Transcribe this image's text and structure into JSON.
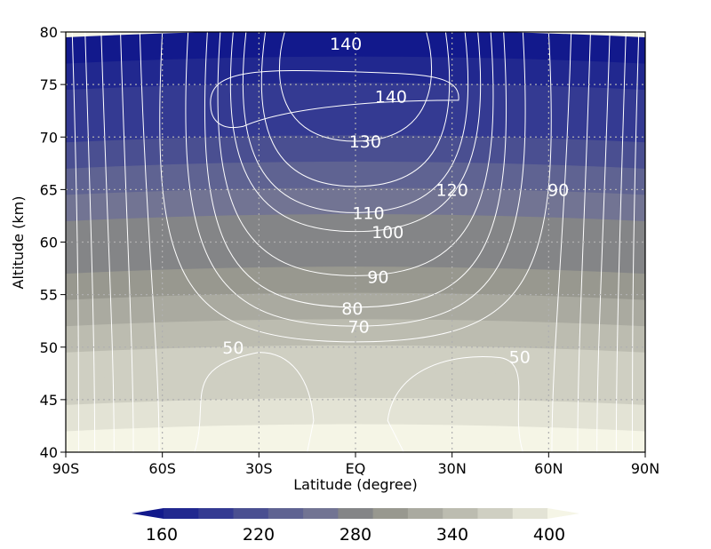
{
  "chart_data": {
    "type": "contour",
    "xlabel": "Latitude (degree)",
    "ylabel": "Altitude (km)",
    "xlim": [
      -90,
      90
    ],
    "ylim": [
      40,
      80
    ],
    "x_ticks": [
      {
        "value": -90,
        "label": "90S"
      },
      {
        "value": -60,
        "label": "60S"
      },
      {
        "value": -30,
        "label": "30S"
      },
      {
        "value": 0,
        "label": "EQ"
      },
      {
        "value": 30,
        "label": "30N"
      },
      {
        "value": 60,
        "label": "60N"
      },
      {
        "value": 90,
        "label": "90N"
      }
    ],
    "y_ticks": [
      {
        "value": 40,
        "label": "40"
      },
      {
        "value": 45,
        "label": "45"
      },
      {
        "value": 50,
        "label": "50"
      },
      {
        "value": 55,
        "label": "55"
      },
      {
        "value": 60,
        "label": "60"
      },
      {
        "value": 65,
        "label": "65"
      },
      {
        "value": 70,
        "label": "70"
      },
      {
        "value": 75,
        "label": "75"
      },
      {
        "value": 80,
        "label": "80"
      }
    ],
    "grid": true,
    "filled_field": {
      "description_units": "temperature-like scalar, shaded bands",
      "bands_by_altitude": [
        {
          "y_from": 40,
          "y_to": 42.5,
          "value": 400
        },
        {
          "y_from": 42.5,
          "y_to": 45,
          "value": 385
        },
        {
          "y_from": 45,
          "y_to": 47.5,
          "value": 370
        },
        {
          "y_from": 47.5,
          "y_to": 50,
          "value": 355
        },
        {
          "y_from": 50,
          "y_to": 52.5,
          "value": 340
        },
        {
          "y_from": 52.5,
          "y_to": 55,
          "value": 325
        },
        {
          "y_from": 55,
          "y_to": 57.5,
          "value": 310
        },
        {
          "y_from": 57.5,
          "y_to": 60,
          "value": 295
        },
        {
          "y_from": 60,
          "y_to": 62.5,
          "value": 280
        },
        {
          "y_from": 62.5,
          "y_to": 65,
          "value": 265
        },
        {
          "y_from": 65,
          "y_to": 67.5,
          "value": 250
        },
        {
          "y_from": 67.5,
          "y_to": 70,
          "value": 235
        },
        {
          "y_from": 70,
          "y_to": 72.5,
          "value": 220
        },
        {
          "y_from": 72.5,
          "y_to": 75,
          "value": 205
        },
        {
          "y_from": 75,
          "y_to": 77.5,
          "value": 190
        },
        {
          "y_from": 77.5,
          "y_to": 80,
          "value": 175
        }
      ]
    },
    "colorbar": {
      "labels": [
        {
          "value": 160,
          "label": "160"
        },
        {
          "value": 220,
          "label": "220"
        },
        {
          "value": 280,
          "label": "280"
        },
        {
          "value": 340,
          "label": "340"
        },
        {
          "value": 400,
          "label": "400"
        }
      ],
      "colors": [
        "#12198c",
        "#21288f",
        "#343a92",
        "#4a4f91",
        "#5f6392",
        "#727493",
        "#848587",
        "#98988f",
        "#aaaaa0",
        "#bcbcb0",
        "#cfcfc2",
        "#e3e3d5",
        "#f5f5e6"
      ],
      "extend": "both"
    },
    "contour_levels": [
      40,
      50,
      60,
      70,
      80,
      90,
      100,
      110,
      120,
      130,
      140
    ],
    "contour_labels": [
      {
        "value": "140",
        "lat": -3,
        "alt": 78.8
      },
      {
        "value": "140",
        "lat": 11,
        "alt": 73.8
      },
      {
        "value": "130",
        "lat": 3,
        "alt": 69.5
      },
      {
        "value": "120",
        "lat": 30,
        "alt": 64.9
      },
      {
        "value": "90",
        "lat": 63,
        "alt": 64.9
      },
      {
        "value": "110",
        "lat": 4,
        "alt": 62.7
      },
      {
        "value": "100",
        "lat": 10,
        "alt": 60.9
      },
      {
        "value": "90",
        "lat": 7,
        "alt": 56.6
      },
      {
        "value": "80",
        "lat": -1,
        "alt": 53.6
      },
      {
        "value": "70",
        "lat": 1,
        "alt": 51.9
      },
      {
        "value": "50",
        "lat": -38,
        "alt": 49.9
      },
      {
        "value": "50",
        "lat": 51,
        "alt": 49.0
      }
    ]
  }
}
